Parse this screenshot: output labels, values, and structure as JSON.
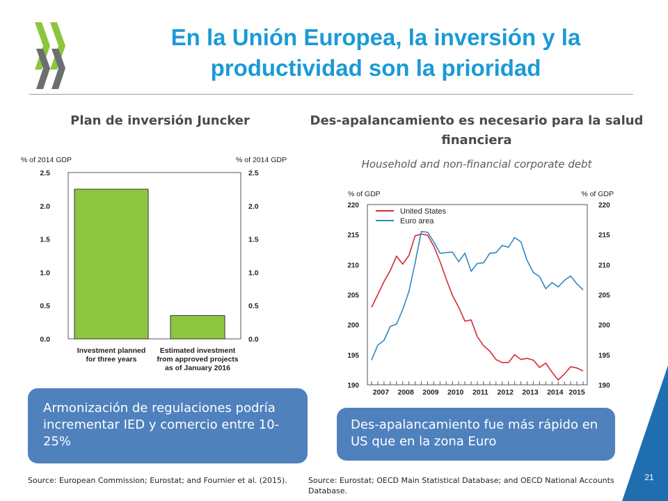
{
  "slide": {
    "title": "En la Unión Europea, la inversión y la productividad son la prioridad",
    "page_number": "21",
    "colors": {
      "title": "#1b9ad6",
      "callout": "#4f81bd",
      "corner": "#1f6fb0",
      "logo_green": "#8cc63f",
      "logo_grey": "#6d6e71"
    }
  },
  "left_panel": {
    "heading": "Plan de inversión Juncker",
    "callout": "Armonización de regulaciones podría incrementar IED y comercio entre 10-25%",
    "source": "Source: European Commission; Eurostat; and Fournier et al. (2015)."
  },
  "right_panel": {
    "heading": "Des-apalancamiento es necesario para la salud financiera",
    "subheading": "Household and non-financial corporate debt",
    "callout": "Des-apalancamiento fue más rápido en US que en la zona Euro",
    "source": "Source: Eurostat; OECD Main Statistical Database; and OECD National Accounts Database."
  },
  "chart_data": [
    {
      "type": "bar",
      "ylabel_left": "% of 2014 GDP",
      "ylabel_right": "% of 2014 GDP",
      "ylim": [
        0,
        2.5
      ],
      "yticks": [
        "0.0",
        "0.5",
        "1.0",
        "1.5",
        "2.0",
        "2.5"
      ],
      "categories": [
        [
          "Investment planned",
          "for three years"
        ],
        [
          "Estimated investment",
          "from approved projects",
          "as of January 2016"
        ]
      ],
      "values": [
        2.25,
        0.35
      ],
      "bar_color": "#8dc63f"
    },
    {
      "type": "line",
      "ylabel_left": "% of GDP",
      "ylabel_right": "% of GDP",
      "ylim": [
        190,
        220
      ],
      "yticks": [
        "190",
        "195",
        "200",
        "205",
        "210",
        "215",
        "220"
      ],
      "x_labels": [
        "2007",
        "2008",
        "2009",
        "2010",
        "2011",
        "2012",
        "2013",
        "2014",
        "2015"
      ],
      "x_start": 2007,
      "x_step": 0.25,
      "series": [
        {
          "name": "United States",
          "color": "#d7282f",
          "values": [
            202.9,
            205.0,
            207.2,
            209.0,
            211.4,
            210.1,
            211.5,
            214.8,
            215.1,
            214.9,
            213.1,
            210.5,
            207.6,
            204.9,
            202.9,
            200.6,
            200.8,
            198.0,
            196.5,
            195.6,
            194.2,
            193.7,
            193.7,
            195.0,
            194.2,
            194.4,
            194.1,
            192.9,
            193.6,
            192.1,
            190.8,
            191.8,
            193.0,
            192.8,
            192.3
          ]
        },
        {
          "name": "Euro area",
          "color": "#2f87c4",
          "values": [
            194.1,
            196.6,
            197.4,
            199.7,
            200.1,
            202.5,
            205.5,
            210.3,
            215.5,
            215.4,
            213.8,
            211.9,
            212.0,
            212.1,
            210.5,
            211.9,
            208.9,
            210.2,
            210.3,
            211.9,
            212.0,
            213.2,
            212.9,
            214.5,
            213.8,
            210.7,
            208.7,
            208.0,
            206.0,
            207.0,
            206.3,
            207.4,
            208.1,
            206.8,
            205.8
          ]
        }
      ]
    }
  ]
}
